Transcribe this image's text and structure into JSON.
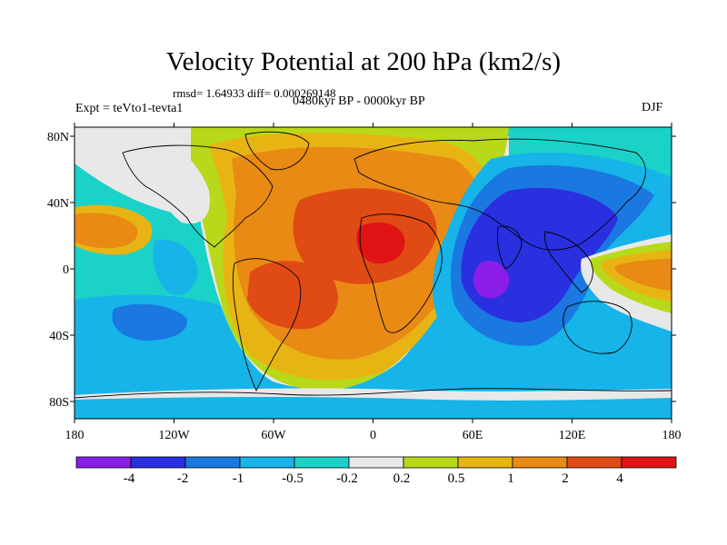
{
  "title": "Velocity Potential at 200 hPa (km2/s)",
  "stats": "rmsd= 1.64933 diff= 0.000269148",
  "experiment": "Expt = teVto1-tevta1",
  "period": "0480kyr BP - 0000kyr BP",
  "season": "DJF",
  "axes": {
    "lon_ticks": [
      "180",
      "120W",
      "60W",
      "0",
      "60E",
      "120E",
      "180"
    ],
    "lat_ticks": [
      "80N",
      "40N",
      "0",
      "40S",
      "80S"
    ]
  },
  "colorbar": {
    "colors": [
      "#8a1ee8",
      "#2a2fe0",
      "#1a78e0",
      "#16b4e8",
      "#1ad2c8",
      "#e8e8e8",
      "#b8d81a",
      "#e8b414",
      "#e88a14",
      "#e04a14",
      "#e01414"
    ],
    "labels": [
      "-4",
      "-2",
      "-1",
      "-0.5",
      "-0.2",
      "0.2",
      "0.5",
      "1",
      "2",
      "4"
    ]
  },
  "palette": {
    "deep_purple": "#8a1ee8",
    "indigo": "#2a2fe0",
    "blue": "#1a78e0",
    "light_blue": "#16b4e8",
    "teal": "#1ad2c8",
    "grey": "#e8e8e8",
    "yellow_green": "#b8d81a",
    "gold": "#e8b414",
    "orange": "#e88a14",
    "red_orange": "#e04a14",
    "red": "#e01414"
  }
}
